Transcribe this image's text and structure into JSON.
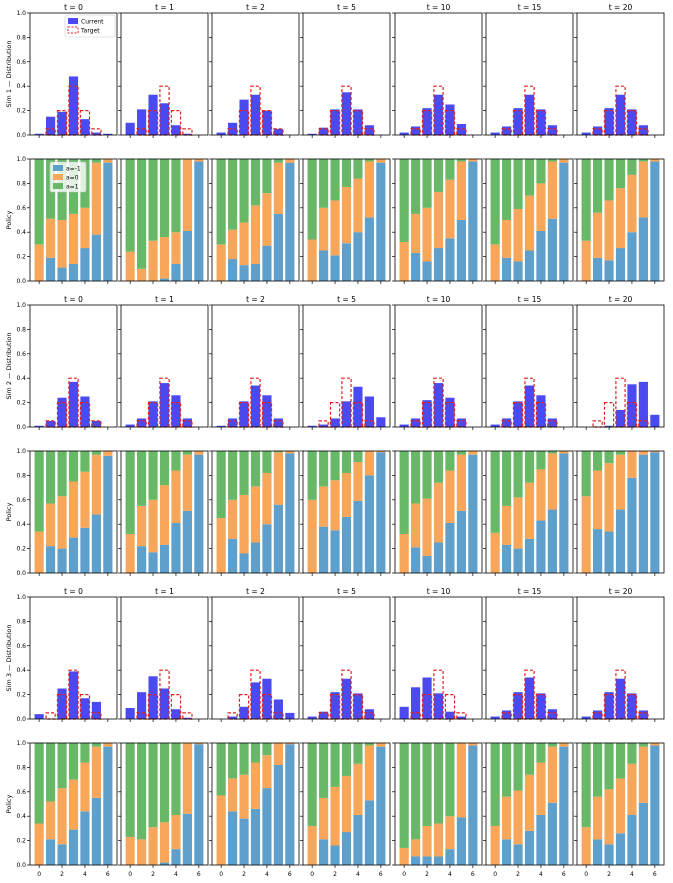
{
  "colors": {
    "current": "#4a4af0",
    "target": "#e02020",
    "a_neg1": "#5f9fcb",
    "a_0": "#f7a65a",
    "a_1": "#68b868"
  },
  "chart_data": {
    "type": "bar",
    "times": [
      "t = 0",
      "t = 1",
      "t = 2",
      "t = 5",
      "t = 10",
      "t = 15",
      "t = 20"
    ],
    "x_ticks": [
      "0",
      "2",
      "4",
      "6"
    ],
    "dist_y_ticks": [
      "0.0",
      "0.2",
      "0.4",
      "0.6",
      "0.8",
      "1.0"
    ],
    "policy_y_ticks": [
      "0.0",
      "0.2",
      "0.4",
      "0.6",
      "0.8",
      "1.0"
    ],
    "ylim": [
      0,
      1
    ],
    "states": [
      0,
      1,
      2,
      3,
      4,
      5,
      6
    ],
    "legend_dist": [
      "Current",
      "Target"
    ],
    "legend_policy": [
      "a=-1",
      "a=0",
      "a=1"
    ],
    "target": [
      0.0,
      0.05,
      0.2,
      0.4,
      0.2,
      0.05,
      0.0
    ],
    "sims": [
      {
        "dist_label": "Sim 1 — Distribution",
        "policy_label": "Policy",
        "distribution": [
          [
            0.01,
            0.15,
            0.19,
            0.48,
            0.13,
            0.02,
            0.01
          ],
          [
            0.1,
            0.21,
            0.33,
            0.26,
            0.08,
            0.01,
            0.0
          ],
          [
            0.02,
            0.1,
            0.29,
            0.33,
            0.2,
            0.05,
            0.0
          ],
          [
            0.01,
            0.06,
            0.21,
            0.35,
            0.21,
            0.08,
            0.0
          ],
          [
            0.02,
            0.07,
            0.22,
            0.33,
            0.25,
            0.09,
            0.0
          ],
          [
            0.02,
            0.07,
            0.22,
            0.33,
            0.21,
            0.08,
            0.0
          ],
          [
            0.02,
            0.07,
            0.22,
            0.33,
            0.21,
            0.08,
            0.0
          ]
        ],
        "policy": [
          [
            [
              0.0,
              0.3
            ],
            [
              0.19,
              0.51
            ],
            [
              0.11,
              0.5
            ],
            [
              0.14,
              0.55
            ],
            [
              0.27,
              0.6
            ],
            [
              0.38,
              0.97
            ],
            [
              0.97,
              1.0
            ]
          ],
          [
            [
              0.0,
              0.24
            ],
            [
              0.0,
              0.1
            ],
            [
              0.0,
              0.33
            ],
            [
              0.02,
              0.36
            ],
            [
              0.14,
              0.4
            ],
            [
              0.41,
              1.0
            ],
            [
              0.98,
              1.0
            ]
          ],
          [
            [
              0.0,
              0.3
            ],
            [
              0.18,
              0.42
            ],
            [
              0.13,
              0.48
            ],
            [
              0.14,
              0.62
            ],
            [
              0.29,
              0.72
            ],
            [
              0.55,
              0.97
            ],
            [
              0.97,
              1.0
            ]
          ],
          [
            [
              0.0,
              0.34
            ],
            [
              0.25,
              0.6
            ],
            [
              0.21,
              0.66
            ],
            [
              0.31,
              0.77
            ],
            [
              0.4,
              0.84
            ],
            [
              0.52,
              0.98
            ],
            [
              0.97,
              1.0
            ]
          ],
          [
            [
              0.0,
              0.32
            ],
            [
              0.23,
              0.55
            ],
            [
              0.16,
              0.6
            ],
            [
              0.27,
              0.73
            ],
            [
              0.35,
              0.83
            ],
            [
              0.5,
              0.98
            ],
            [
              0.98,
              1.0
            ]
          ],
          [
            [
              0.0,
              0.3
            ],
            [
              0.19,
              0.5
            ],
            [
              0.16,
              0.59
            ],
            [
              0.25,
              0.7
            ],
            [
              0.41,
              0.8
            ],
            [
              0.51,
              0.98
            ],
            [
              0.97,
              1.0
            ]
          ],
          [
            [
              0.0,
              0.33
            ],
            [
              0.19,
              0.56
            ],
            [
              0.17,
              0.66
            ],
            [
              0.27,
              0.76
            ],
            [
              0.4,
              0.87
            ],
            [
              0.52,
              0.98
            ],
            [
              0.98,
              1.0
            ]
          ]
        ]
      },
      {
        "dist_label": "Sim 2 — Distribution",
        "policy_label": "Policy",
        "distribution": [
          [
            0.01,
            0.05,
            0.24,
            0.37,
            0.25,
            0.05,
            0.0
          ],
          [
            0.02,
            0.07,
            0.21,
            0.36,
            0.26,
            0.07,
            0.0
          ],
          [
            0.01,
            0.07,
            0.21,
            0.34,
            0.26,
            0.07,
            0.0
          ],
          [
            0.01,
            0.02,
            0.07,
            0.21,
            0.33,
            0.25,
            0.08
          ],
          [
            0.02,
            0.07,
            0.22,
            0.36,
            0.24,
            0.07,
            0.0
          ],
          [
            0.02,
            0.07,
            0.21,
            0.34,
            0.26,
            0.07,
            0.0
          ],
          [
            0.0,
            0.0,
            0.01,
            0.14,
            0.35,
            0.37,
            0.1
          ]
        ],
        "policy": [
          [
            [
              0.0,
              0.34
            ],
            [
              0.22,
              0.57
            ],
            [
              0.2,
              0.63
            ],
            [
              0.29,
              0.75
            ],
            [
              0.37,
              0.83
            ],
            [
              0.48,
              0.97
            ],
            [
              0.96,
              1.0
            ]
          ],
          [
            [
              0.0,
              0.32
            ],
            [
              0.22,
              0.55
            ],
            [
              0.17,
              0.6
            ],
            [
              0.23,
              0.72
            ],
            [
              0.41,
              0.84
            ],
            [
              0.51,
              0.97
            ],
            [
              0.97,
              1.0
            ]
          ],
          [
            [
              0.0,
              0.45
            ],
            [
              0.28,
              0.6
            ],
            [
              0.16,
              0.64
            ],
            [
              0.25,
              0.71
            ],
            [
              0.4,
              0.82
            ],
            [
              0.56,
              0.99
            ],
            [
              0.98,
              1.0
            ]
          ],
          [
            [
              0.0,
              0.6
            ],
            [
              0.38,
              0.71
            ],
            [
              0.35,
              0.76
            ],
            [
              0.46,
              0.82
            ],
            [
              0.59,
              0.91
            ],
            [
              0.8,
              1.0
            ],
            [
              0.99,
              1.0
            ]
          ],
          [
            [
              0.0,
              0.32
            ],
            [
              0.21,
              0.57
            ],
            [
              0.14,
              0.61
            ],
            [
              0.25,
              0.74
            ],
            [
              0.41,
              0.84
            ],
            [
              0.51,
              0.97
            ],
            [
              0.97,
              1.0
            ]
          ],
          [
            [
              0.0,
              0.33
            ],
            [
              0.23,
              0.55
            ],
            [
              0.2,
              0.62
            ],
            [
              0.28,
              0.74
            ],
            [
              0.43,
              0.85
            ],
            [
              0.52,
              0.98
            ],
            [
              0.98,
              1.0
            ]
          ],
          [
            [
              0.0,
              0.63
            ],
            [
              0.36,
              0.84
            ],
            [
              0.34,
              0.9
            ],
            [
              0.52,
              0.97
            ],
            [
              0.78,
              1.0
            ],
            [
              0.97,
              1.0
            ],
            [
              0.99,
              1.0
            ]
          ]
        ]
      },
      {
        "dist_label": "Sim 3 — Distribution",
        "policy_label": "Policy",
        "distribution": [
          [
            0.04,
            0.0,
            0.25,
            0.39,
            0.17,
            0.14,
            0.0
          ],
          [
            0.09,
            0.22,
            0.35,
            0.25,
            0.08,
            0.01,
            0.0
          ],
          [
            0.0,
            0.02,
            0.1,
            0.3,
            0.33,
            0.16,
            0.05
          ],
          [
            0.02,
            0.06,
            0.22,
            0.33,
            0.21,
            0.08,
            0.0
          ],
          [
            0.1,
            0.26,
            0.34,
            0.21,
            0.06,
            0.02,
            0.0
          ],
          [
            0.02,
            0.07,
            0.22,
            0.34,
            0.21,
            0.08,
            0.0
          ],
          [
            0.02,
            0.07,
            0.22,
            0.33,
            0.21,
            0.07,
            0.0
          ]
        ],
        "policy": [
          [
            [
              0.0,
              0.34
            ],
            [
              0.21,
              0.52
            ],
            [
              0.17,
              0.63
            ],
            [
              0.29,
              0.7
            ],
            [
              0.44,
              0.84
            ],
            [
              0.55,
              0.97
            ],
            [
              0.97,
              1.0
            ]
          ],
          [
            [
              0.0,
              0.23
            ],
            [
              0.0,
              0.21
            ],
            [
              0.0,
              0.31
            ],
            [
              0.02,
              0.35
            ],
            [
              0.13,
              0.41
            ],
            [
              0.42,
              1.0
            ],
            [
              0.99,
              1.0
            ]
          ],
          [
            [
              0.0,
              0.57
            ],
            [
              0.44,
              0.71
            ],
            [
              0.38,
              0.74
            ],
            [
              0.46,
              0.84
            ],
            [
              0.63,
              0.9
            ],
            [
              0.82,
              1.0
            ],
            [
              0.99,
              1.0
            ]
          ],
          [
            [
              0.0,
              0.32
            ],
            [
              0.21,
              0.55
            ],
            [
              0.16,
              0.64
            ],
            [
              0.27,
              0.73
            ],
            [
              0.41,
              0.83
            ],
            [
              0.53,
              0.98
            ],
            [
              0.97,
              1.0
            ]
          ],
          [
            [
              0.0,
              0.14
            ],
            [
              0.07,
              0.21
            ],
            [
              0.07,
              0.32
            ],
            [
              0.07,
              0.34
            ],
            [
              0.13,
              0.4
            ],
            [
              0.39,
              1.0
            ],
            [
              0.98,
              1.0
            ]
          ],
          [
            [
              0.0,
              0.32
            ],
            [
              0.21,
              0.56
            ],
            [
              0.17,
              0.61
            ],
            [
              0.28,
              0.74
            ],
            [
              0.41,
              0.84
            ],
            [
              0.51,
              0.97
            ],
            [
              0.97,
              1.0
            ]
          ],
          [
            [
              0.0,
              0.31
            ],
            [
              0.21,
              0.56
            ],
            [
              0.17,
              0.62
            ],
            [
              0.26,
              0.71
            ],
            [
              0.41,
              0.83
            ],
            [
              0.51,
              0.97
            ],
            [
              0.98,
              1.0
            ]
          ]
        ]
      }
    ]
  }
}
